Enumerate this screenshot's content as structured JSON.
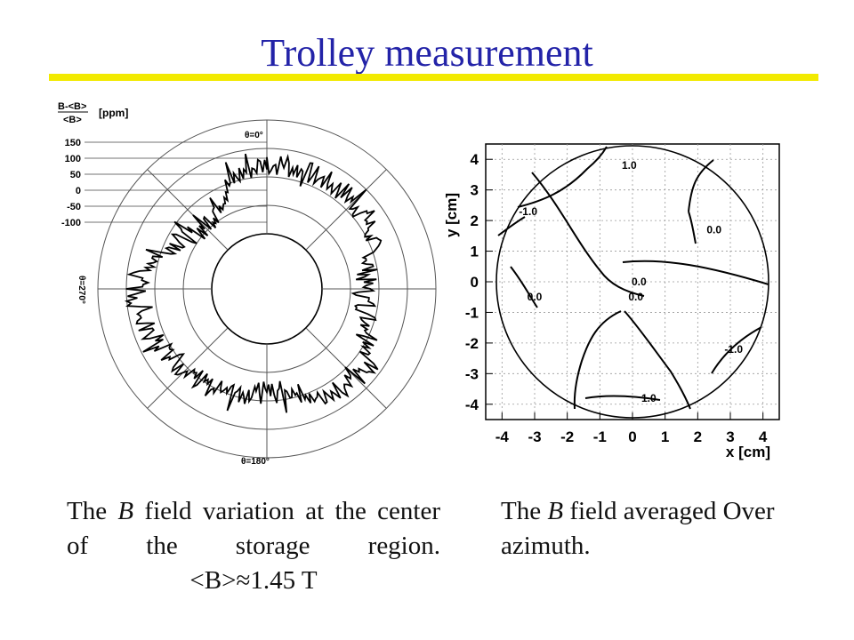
{
  "title": "Trolley measurement",
  "colors": {
    "title": "#2323a8",
    "rule": "#f2ea00"
  },
  "polar_figure": {
    "scale_label_line1": "B-<B>",
    "scale_label_line2": "<B>",
    "scale_unit": "[ppm]",
    "scale_ticks": [
      "150",
      "100",
      "50",
      "0",
      "-50",
      "-100"
    ],
    "angle_top": "θ=0°",
    "angle_left": "θ=270°",
    "angle_bottom": "θ=180°"
  },
  "chart_data": {
    "type": "contour",
    "xlabel": "x [cm]",
    "ylabel": "y [cm]",
    "xlim": [
      -4.5,
      4.5
    ],
    "ylim": [
      -4.5,
      4.5
    ],
    "x_ticks": [
      "-4",
      "-3",
      "-2",
      "-1",
      "0",
      "1",
      "2",
      "3",
      "4"
    ],
    "y_ticks": [
      "4",
      "3",
      "2",
      "1",
      "0",
      "-1",
      "-2",
      "-3",
      "-4"
    ],
    "grid": true,
    "contour_labels": [
      {
        "text": "1.0",
        "x": -0.1,
        "y": 3.8
      },
      {
        "text": "-1.0",
        "x": -3.2,
        "y": 2.3
      },
      {
        "text": "0.0",
        "x": 2.5,
        "y": 1.7
      },
      {
        "text": "0.0",
        "x": 0.2,
        "y": 0.0
      },
      {
        "text": "0.0",
        "x": -3.0,
        "y": -0.5
      },
      {
        "text": "0.0",
        "x": 0.1,
        "y": -0.5
      },
      {
        "text": "-1.0",
        "x": 3.1,
        "y": -2.2
      },
      {
        "text": "1.0",
        "x": 0.5,
        "y": -3.8
      }
    ]
  },
  "caption_left_prefix": "The ",
  "caption_left_var": "B",
  "caption_left_rest": " field variation at the center of the storage region.",
  "caption_left_average": "<B>≈1.45 T",
  "caption_right_prefix": "The ",
  "caption_right_var": "B",
  "caption_right_rest": " field averaged Over azimuth."
}
